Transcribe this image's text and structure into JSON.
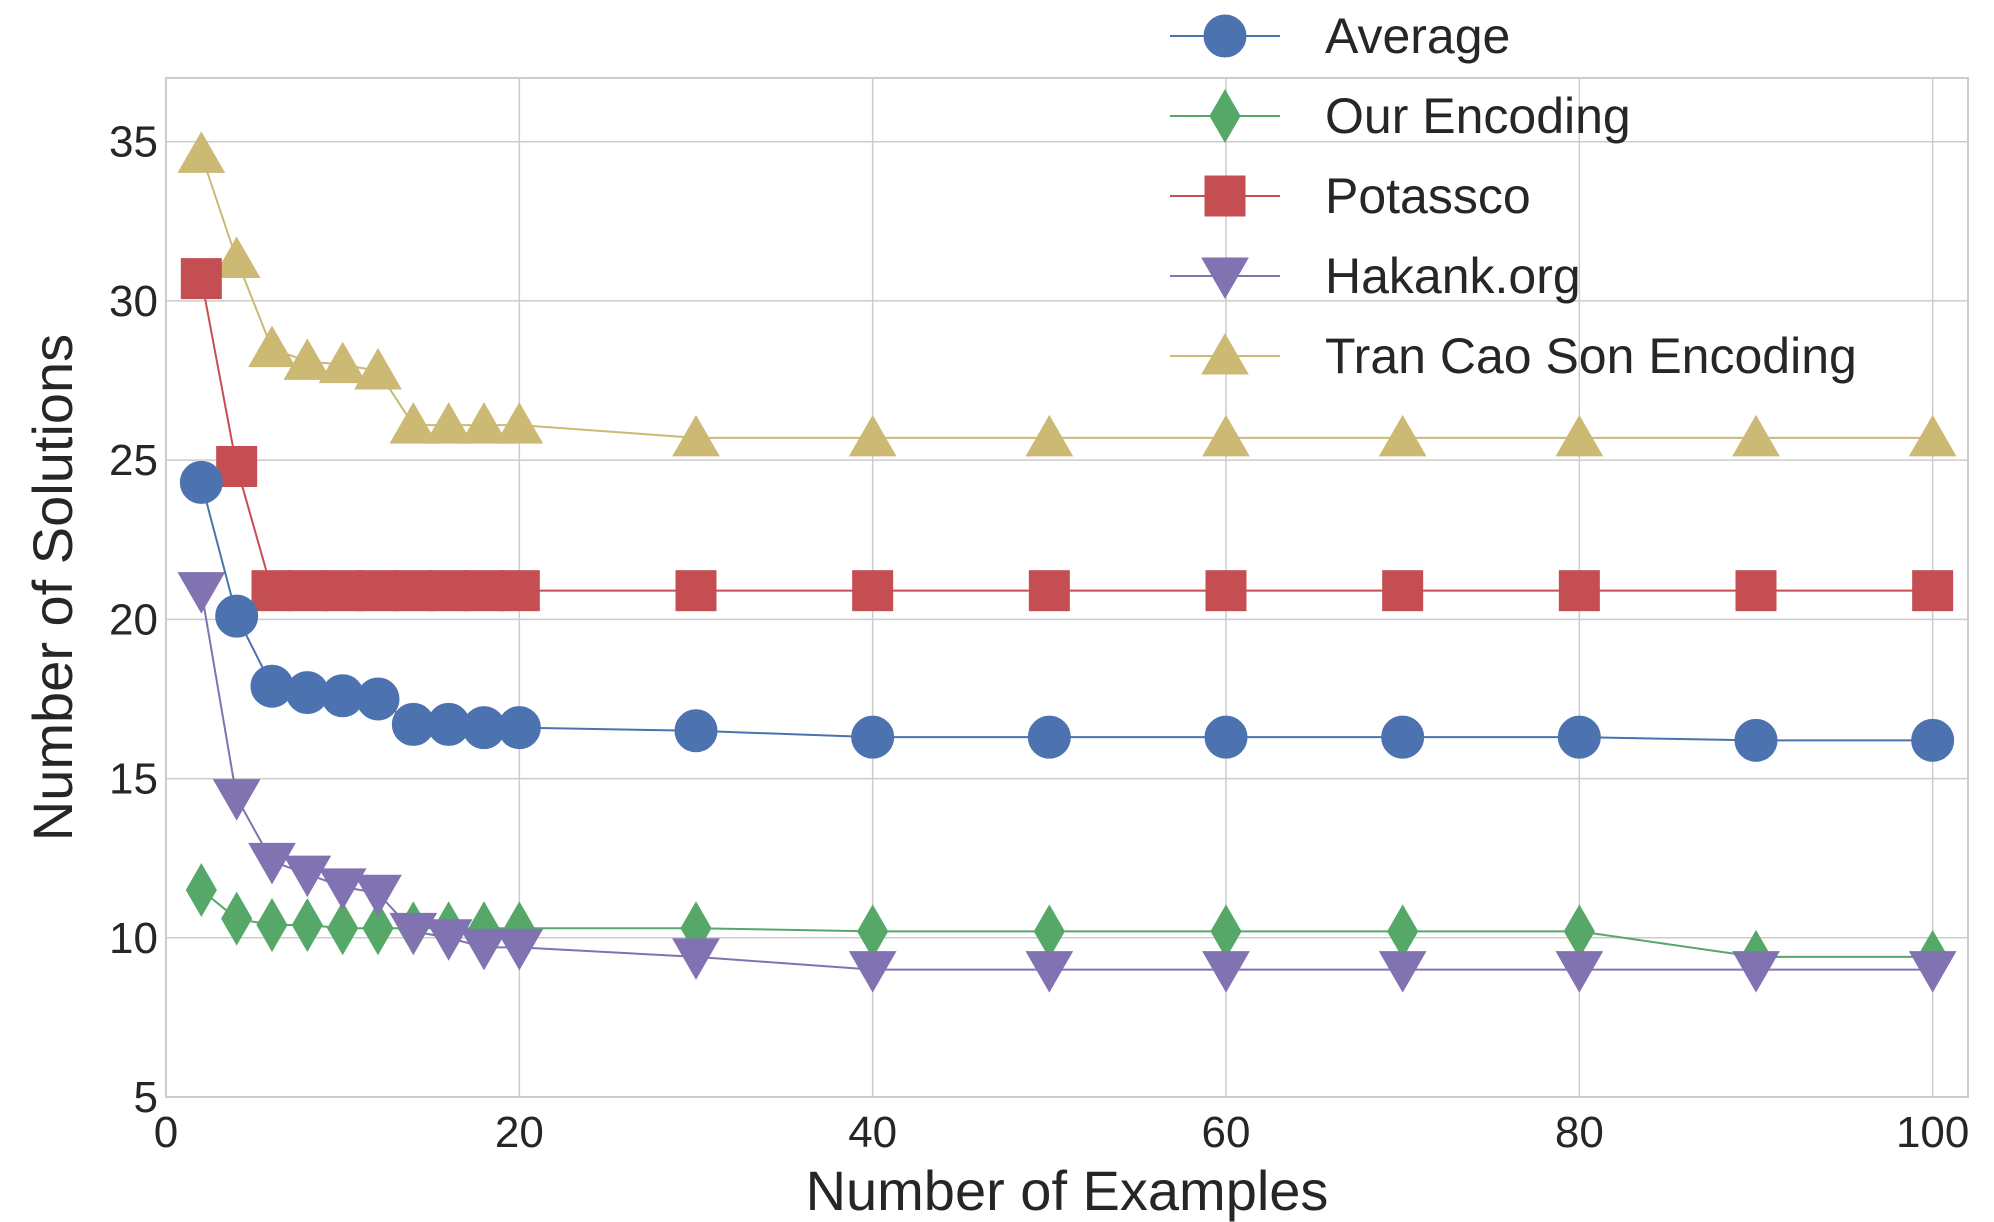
{
  "chart_data": {
    "type": "line",
    "xlabel": "Number of Examples",
    "ylabel": "Number of Solutions",
    "xlim": [
      0,
      102
    ],
    "ylim": [
      5,
      37
    ],
    "xticks": [
      0,
      20,
      40,
      60,
      80,
      100
    ],
    "yticks": [
      5,
      10,
      15,
      20,
      25,
      30,
      35
    ],
    "grid": true,
    "legend_position": "top-right",
    "x": [
      2,
      4,
      6,
      8,
      10,
      12,
      14,
      16,
      18,
      20,
      30,
      40,
      50,
      60,
      70,
      80,
      90,
      100
    ],
    "series": [
      {
        "name": "Average",
        "color": "#4c72b0",
        "marker": "circle",
        "values": [
          24.3,
          20.1,
          17.9,
          17.7,
          17.6,
          17.5,
          16.7,
          16.7,
          16.6,
          16.6,
          16.5,
          16.3,
          16.3,
          16.3,
          16.3,
          16.3,
          16.2,
          16.2
        ]
      },
      {
        "name": "Our Encoding",
        "color": "#55a868",
        "marker": "diamond",
        "values": [
          11.5,
          10.6,
          10.4,
          10.4,
          10.3,
          10.3,
          10.3,
          10.3,
          10.3,
          10.3,
          10.3,
          10.2,
          10.2,
          10.2,
          10.2,
          10.2,
          9.4,
          9.4
        ]
      },
      {
        "name": "Potassco",
        "color": "#c44e52",
        "marker": "square",
        "values": [
          30.7,
          24.8,
          20.9,
          20.9,
          20.9,
          20.9,
          20.9,
          20.9,
          20.9,
          20.9,
          20.9,
          20.9,
          20.9,
          20.9,
          20.9,
          20.9,
          20.9,
          20.9
        ]
      },
      {
        "name": "Hakank.org",
        "color": "#8172b2",
        "marker": "triangle-down",
        "values": [
          20.9,
          14.4,
          12.4,
          12.0,
          11.6,
          11.4,
          10.2,
          10.0,
          9.7,
          9.7,
          9.4,
          9.0,
          9.0,
          9.0,
          9.0,
          9.0,
          9.0,
          9.0
        ]
      },
      {
        "name": "Tran Cao Son Encoding",
        "color": "#ccb974",
        "marker": "triangle-up",
        "values": [
          34.6,
          31.3,
          28.5,
          28.1,
          28.0,
          27.8,
          26.1,
          26.1,
          26.1,
          26.1,
          25.7,
          25.7,
          25.7,
          25.7,
          25.7,
          25.7,
          25.7,
          25.7
        ]
      }
    ]
  }
}
